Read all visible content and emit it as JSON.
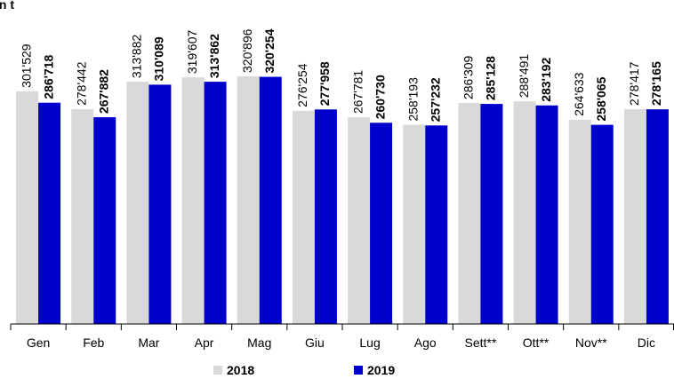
{
  "chart_data": {
    "type": "bar",
    "unit_label": "In t",
    "categories": [
      "Gen",
      "Feb",
      "Mar",
      "Apr",
      "Mag",
      "Giu",
      "Lug",
      "Ago",
      "Sett**",
      "Ott**",
      "Nov**",
      "Dic"
    ],
    "series": [
      {
        "name": "2018",
        "color": "#d9d9d9",
        "bold": false,
        "values": [
          301529,
          278442,
          313882,
          319607,
          320896,
          276254,
          267781,
          258193,
          286309,
          288491,
          264633,
          278417
        ],
        "value_labels": [
          "301'529",
          "278'442",
          "313'882",
          "319'607",
          "320'896",
          "276'254",
          "267'781",
          "258'193",
          "286'309",
          "288'491",
          "264'633",
          "278'417"
        ]
      },
      {
        "name": "2019",
        "color": "#0000cc",
        "bold": true,
        "values": [
          286718,
          267882,
          310089,
          313862,
          320254,
          277958,
          260730,
          257232,
          285128,
          283192,
          258065,
          278165
        ],
        "value_labels": [
          "286'718",
          "267'882",
          "310'089",
          "313'862",
          "320'254",
          "277'958",
          "260'730",
          "257'232",
          "285'128",
          "283'192",
          "258'065",
          "278'165"
        ]
      }
    ],
    "legend": "bottom"
  }
}
